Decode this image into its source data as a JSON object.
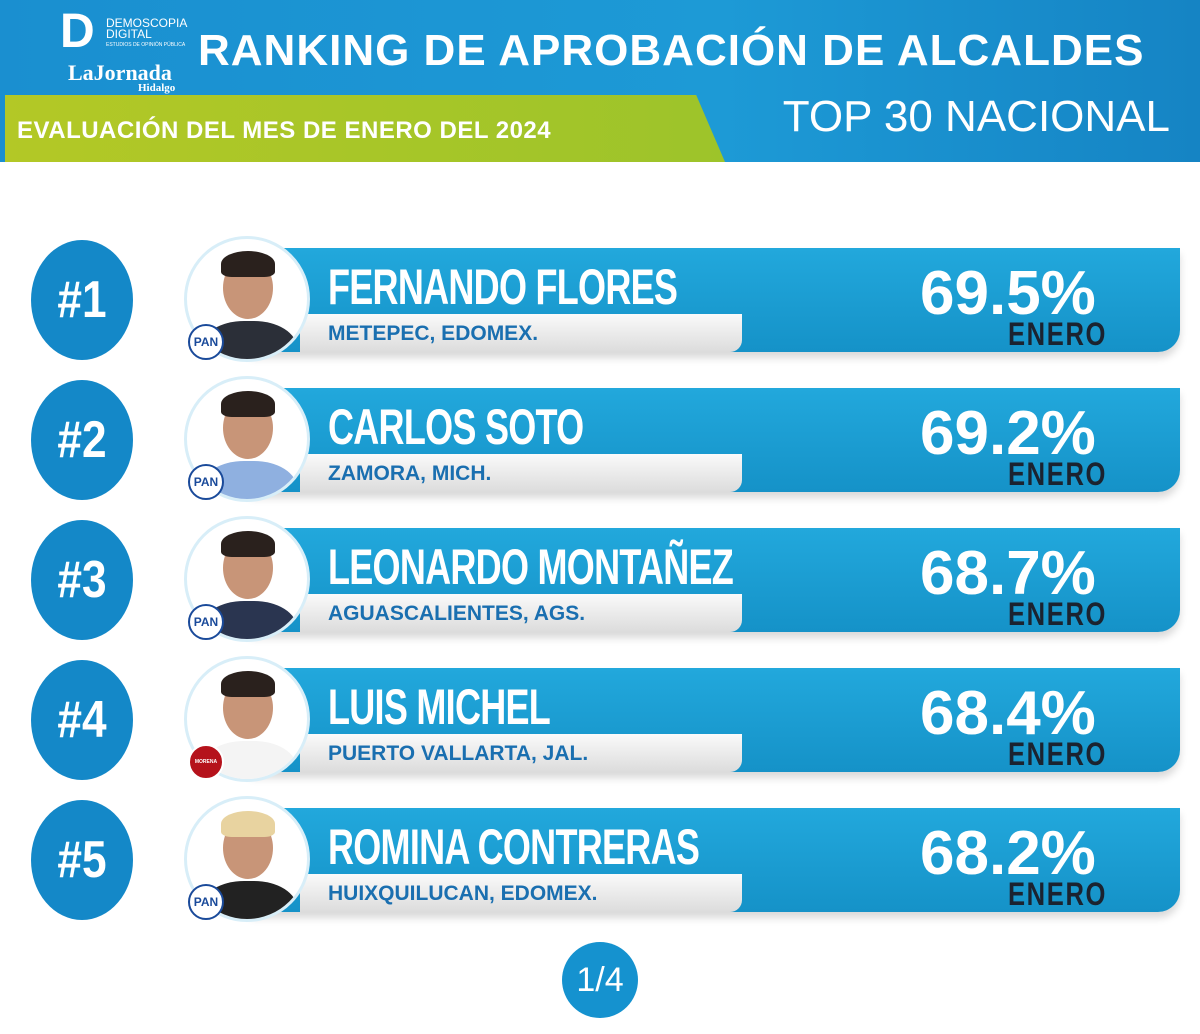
{
  "header": {
    "logo_demoscopia": "DEMOSCOPIA DIGITAL",
    "logo_demoscopia_tagline": "ESTUDIOS DE OPINIÓN PÚBLICA",
    "logo_jornada": "LaJornada",
    "logo_jornada_region": "Hidalgo",
    "title": "RANKING DE APROBACIÓN DE ALCALDES",
    "subtitle": "TOP 30 NACIONAL",
    "evaluation": "EVALUACIÓN DEL MES DE ENERO DEL 2024"
  },
  "rankings": [
    {
      "rank": "#1",
      "name": "FERNANDO FLORES",
      "location": "METEPEC, EDOMEX.",
      "approval": "69.5%",
      "month": "ENERO",
      "party": "PAN",
      "body_color": "#2b2f38"
    },
    {
      "rank": "#2",
      "name": "CARLOS SOTO",
      "location": "ZAMORA, MICH.",
      "approval": "69.2%",
      "month": "ENERO",
      "party": "PAN",
      "body_color": "#8fb0e0"
    },
    {
      "rank": "#3",
      "name": "LEONARDO MONTAÑEZ",
      "location": "AGUASCALIENTES, AGS.",
      "approval": "68.7%",
      "month": "ENERO",
      "party": "PAN",
      "body_color": "#2a3550"
    },
    {
      "rank": "#4",
      "name": "LUIS MICHEL",
      "location": "PUERTO VALLARTA, JAL.",
      "approval": "68.4%",
      "month": "ENERO",
      "party": "MORENA",
      "body_color": "#f4f4f4"
    },
    {
      "rank": "#5",
      "name": "ROMINA CONTRERAS",
      "location": "HUIXQUILUCAN, EDOMEX.",
      "approval": "68.2%",
      "month": "ENERO",
      "party": "PAN",
      "body_color": "#222"
    }
  ],
  "colors": {
    "primary_blue": "#1592c8",
    "green": "#b3c826",
    "party_pan": "#1a4a9a",
    "party_morena": "#b5121b"
  },
  "pagination": "1/4"
}
